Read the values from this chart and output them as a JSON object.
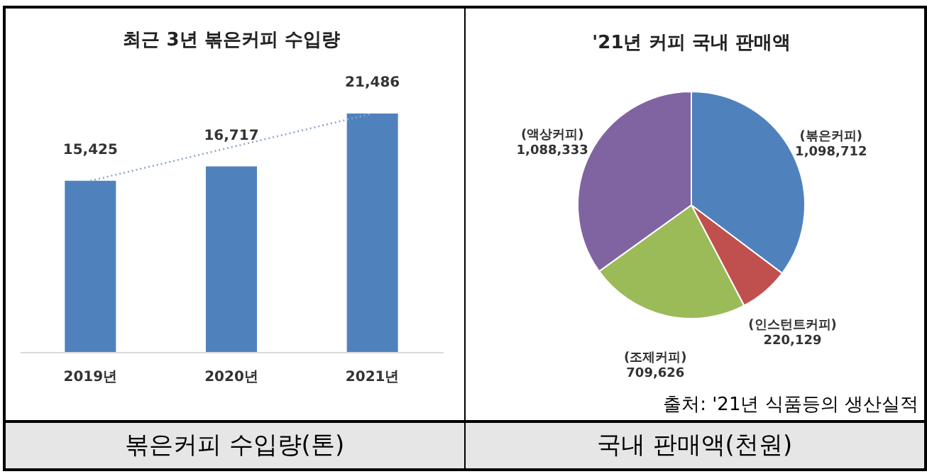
{
  "chart_data": [
    {
      "type": "bar",
      "title": "최근 3년 볶은커피 수입량",
      "categories": [
        "2019년",
        "2020년",
        "2021년"
      ],
      "series": [
        {
          "type": "bar",
          "color": "#4f81bd",
          "values": [
            15425,
            16717,
            21486
          ],
          "value_labels": [
            "15,425",
            "16,717",
            "21,486"
          ]
        },
        {
          "type": "line",
          "color": "#8fa6c6",
          "x": [
            "2019년",
            "2021년"
          ],
          "values": [
            15425,
            21486
          ],
          "line_style": "dotted"
        }
      ],
      "legend": false,
      "annotations": [
        "볶은커피 수입량(톤)"
      ]
    },
    {
      "type": "pie",
      "title": "'21년 커피 국내 판매액",
      "categories": [
        "(볶은커피)",
        "(인스턴트커피)",
        "(조제커피)",
        "(액상커피)"
      ],
      "values": [
        1098712,
        220129,
        709626,
        1088333
      ],
      "value_labels": [
        "1,098,712",
        "220,129",
        "709,626",
        "1,088,333"
      ],
      "colors": [
        "#4f81bd",
        "#c0504d",
        "#9bbb59",
        "#8064a2"
      ],
      "legend": false,
      "annotations": [
        "출처: '21년 식품등의 생산실적",
        "국내 판매액(천원)"
      ]
    }
  ]
}
